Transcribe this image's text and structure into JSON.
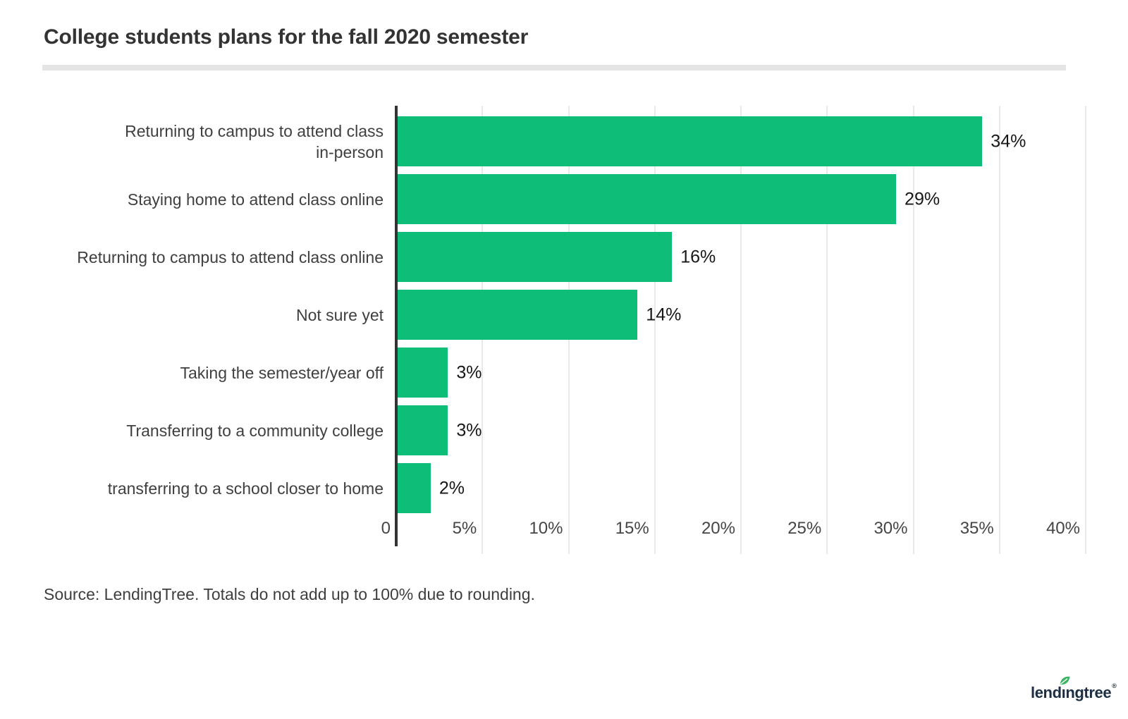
{
  "title": "College students plans for the fall 2020 semester",
  "source_note": "Source: LendingTree. Totals do not add up to 100% due to rounding.",
  "logo": {
    "full_name": "lendingtree",
    "prefix": "lend",
    "i_char": "ı",
    "suffix": "ngtree",
    "registered_mark": "®",
    "leaf_icon": "leaf-icon"
  },
  "colors": {
    "bar": "#0dbd78",
    "axis": "#333333",
    "gridline": "#e9e9e9",
    "divider": "#e4e4e4",
    "title_text": "#333333",
    "category_text": "#3f3f3f",
    "value_text": "#171717",
    "tick_text": "#454545",
    "source_text": "#3e3e3e",
    "logo_navy": "#1b2e43",
    "leaf_green": "#3cb464"
  },
  "chart_data": {
    "type": "bar",
    "orientation": "horizontal",
    "title": "College students plans for the fall 2020 semester",
    "categories": [
      "Returning to campus to attend class\nin-person",
      "Staying home to attend class online",
      "Returning to campus to attend class online",
      "Not sure yet",
      "Taking the semester/year off",
      "Transferring to a community college",
      "transferring to a school closer to home"
    ],
    "values": [
      34,
      29,
      16,
      14,
      3,
      3,
      2
    ],
    "value_labels": [
      "34%",
      "29%",
      "16%",
      "14%",
      "3%",
      "3%",
      "2%"
    ],
    "xlim": [
      0,
      40
    ],
    "xticks": [
      {
        "value": 0,
        "label": "0"
      },
      {
        "value": 5,
        "label": "5%"
      },
      {
        "value": 10,
        "label": "10%"
      },
      {
        "value": 15,
        "label": "15%"
      },
      {
        "value": 20,
        "label": "20%"
      },
      {
        "value": 25,
        "label": "25%"
      },
      {
        "value": 30,
        "label": "30%"
      },
      {
        "value": 35,
        "label": "35%"
      },
      {
        "value": 40,
        "label": "40%"
      }
    ],
    "grid": "vertical gridlines every 5%, legend none",
    "bar_color": "#0dbd78"
  }
}
